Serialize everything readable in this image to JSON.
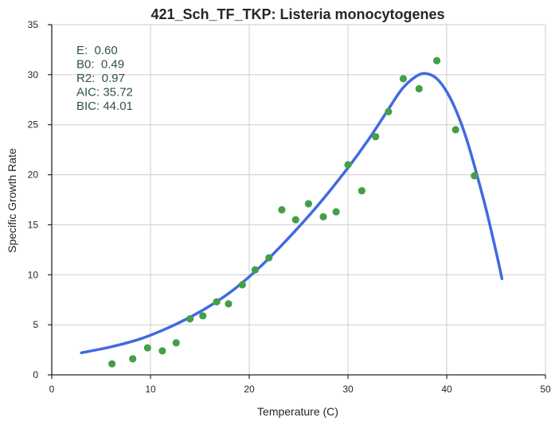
{
  "chart_data": {
    "type": "scatter",
    "title": "421_Sch_TF_TKP: Listeria monocytogenes",
    "xlabel": "Temperature (C)",
    "ylabel": "Specific Growth Rate",
    "xlim": [
      0,
      50
    ],
    "ylim": [
      0,
      35
    ],
    "xticks": [
      "0",
      "10",
      "20",
      "30",
      "40",
      "50"
    ],
    "yticks": [
      "0",
      "5",
      "10",
      "15",
      "20",
      "25",
      "30",
      "35"
    ],
    "grid": true,
    "stats": [
      "E:  0.60",
      "B0:  0.49",
      "R2:  0.97",
      "AIC: 35.72",
      "BIC: 44.01"
    ],
    "colors": {
      "points": "#43a047",
      "fit": "#4169e1"
    },
    "observed": {
      "x": [
        6.1,
        8.2,
        9.7,
        11.2,
        12.6,
        14.0,
        15.3,
        16.7,
        17.9,
        19.3,
        20.6,
        22.0,
        23.3,
        24.7,
        26.0,
        27.5,
        28.8,
        30.0,
        31.4,
        32.8,
        34.1,
        35.6,
        37.2,
        39.0,
        40.9,
        42.8
      ],
      "y": [
        1.1,
        1.6,
        2.7,
        2.4,
        3.2,
        5.6,
        5.9,
        7.3,
        7.1,
        9.0,
        10.5,
        11.7,
        16.5,
        15.5,
        17.1,
        15.8,
        16.3,
        21.0,
        18.4,
        23.8,
        26.3,
        29.6,
        28.6,
        31.4,
        24.5,
        19.9
      ]
    },
    "fit": {
      "x": [
        3.0,
        6.0,
        9.0,
        12.0,
        15.0,
        18.0,
        21.0,
        24.0,
        27.0,
        30.0,
        32.0,
        34.0,
        35.5,
        37.0,
        38.0,
        39.0,
        40.0,
        41.0,
        42.0,
        43.0,
        44.0,
        45.0,
        45.6
      ],
      "y": [
        2.2,
        2.8,
        3.6,
        4.8,
        6.3,
        8.2,
        10.7,
        13.7,
        17.0,
        20.7,
        23.4,
        26.4,
        28.6,
        29.9,
        30.1,
        29.6,
        28.3,
        26.3,
        23.6,
        20.2,
        16.5,
        12.3,
        9.6
      ]
    }
  }
}
